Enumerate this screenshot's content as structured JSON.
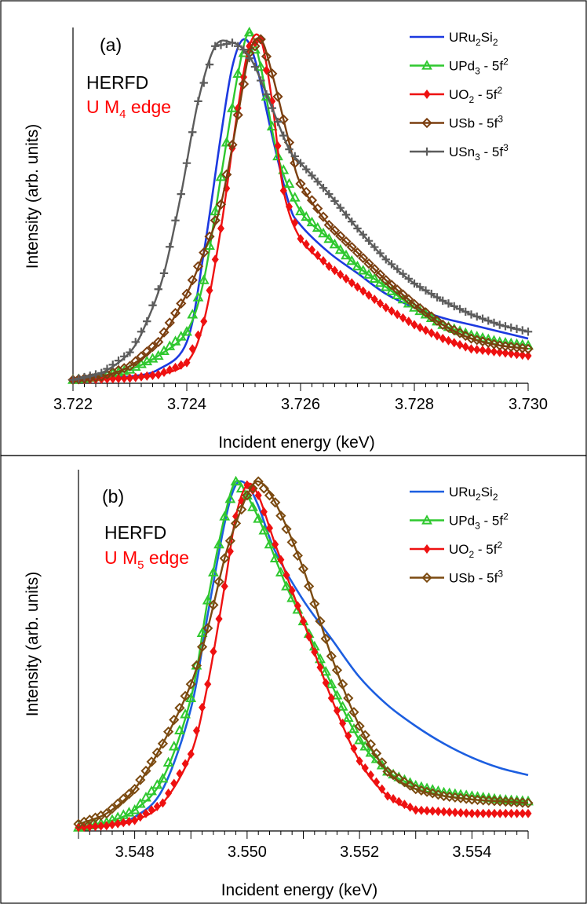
{
  "chart_data": [
    {
      "type": "line",
      "panel_label": "(a)",
      "annotations": [
        {
          "text": "HERFD",
          "color": "#000000"
        },
        {
          "text": "U M",
          "sub": "4",
          "suffix": " edge",
          "color": "#ff0000"
        }
      ],
      "xlabel": "Incident energy (keV)",
      "ylabel": "Intensity (arb. units)",
      "xlim": [
        3.722,
        3.73
      ],
      "ylim": [
        0,
        1.0
      ],
      "xticks": [
        "3.722",
        "3.724",
        "3.726",
        "3.728",
        "3.730"
      ],
      "xtick_values": [
        3.722,
        3.724,
        3.726,
        3.728,
        3.73
      ],
      "legend_position": "top-right",
      "grid": false,
      "series": [
        {
          "name": "URu2Si2",
          "base": "URu",
          "sub1": "2",
          "mid": "Si",
          "sub2": "2",
          "tail": "",
          "sup": "",
          "color": "#1c39e0",
          "marker": "none",
          "x": [
            3.722,
            3.7225,
            3.723,
            3.7235,
            3.724,
            3.7243,
            3.7246,
            3.7248,
            3.725,
            3.7252,
            3.7255,
            3.7258,
            3.726,
            3.7265,
            3.727,
            3.7275,
            3.728,
            3.7285,
            3.729,
            3.7295,
            3.73
          ],
          "y": [
            0.01,
            0.015,
            0.02,
            0.04,
            0.12,
            0.38,
            0.72,
            0.92,
            1.0,
            0.94,
            0.72,
            0.52,
            0.46,
            0.38,
            0.32,
            0.26,
            0.22,
            0.19,
            0.17,
            0.15,
            0.13
          ]
        },
        {
          "name": "UPd3 - 5f2",
          "base": "UPd",
          "sub1": "3",
          "mid": "",
          "sub2": "",
          "tail": " - 5f",
          "sup": "2",
          "color": "#2fc82f",
          "marker": "triangle",
          "x": [
            3.722,
            3.7225,
            3.723,
            3.7235,
            3.724,
            3.7243,
            3.7246,
            3.7249,
            3.7251,
            3.7253,
            3.7256,
            3.726,
            3.7265,
            3.727,
            3.7275,
            3.728,
            3.7285,
            3.729,
            3.7295,
            3.73
          ],
          "y": [
            0.01,
            0.02,
            0.04,
            0.08,
            0.15,
            0.3,
            0.6,
            0.9,
            1.02,
            0.92,
            0.66,
            0.5,
            0.42,
            0.34,
            0.28,
            0.22,
            0.17,
            0.14,
            0.12,
            0.11
          ]
        },
        {
          "name": "UO2 - 5f2",
          "base": "UO",
          "sub1": "2",
          "mid": "",
          "sub2": "",
          "tail": " - 5f",
          "sup": "2",
          "color": "#ee1111",
          "marker": "diamond-filled",
          "x": [
            3.722,
            3.7225,
            3.723,
            3.7235,
            3.724,
            3.7243,
            3.7246,
            3.7249,
            3.7251,
            3.7253,
            3.7255,
            3.7257,
            3.726,
            3.7265,
            3.727,
            3.7275,
            3.728,
            3.7285,
            3.729,
            3.7295,
            3.73
          ],
          "y": [
            0.01,
            0.012,
            0.015,
            0.025,
            0.06,
            0.18,
            0.45,
            0.8,
            0.98,
            1.0,
            0.82,
            0.56,
            0.42,
            0.34,
            0.28,
            0.22,
            0.17,
            0.13,
            0.1,
            0.09,
            0.08
          ]
        },
        {
          "name": "USb - 5f3",
          "base": "USb",
          "sub1": "",
          "mid": "",
          "sub2": "",
          "tail": " - 5f",
          "sup": "3",
          "color": "#7b3f10",
          "marker": "diamond-open",
          "x": [
            3.722,
            3.7225,
            3.723,
            3.7235,
            3.724,
            3.7243,
            3.7246,
            3.7249,
            3.7251,
            3.7253,
            3.7255,
            3.7258,
            3.726,
            3.7265,
            3.727,
            3.7275,
            3.728,
            3.7285,
            3.729,
            3.7295,
            3.73
          ],
          "y": [
            0.01,
            0.02,
            0.05,
            0.12,
            0.26,
            0.38,
            0.52,
            0.78,
            0.96,
            1.0,
            0.9,
            0.7,
            0.58,
            0.46,
            0.38,
            0.3,
            0.23,
            0.17,
            0.13,
            0.11,
            0.1
          ]
        },
        {
          "name": "USn3 - 5f3",
          "base": "USn",
          "sub1": "3",
          "mid": "",
          "sub2": "",
          "tail": " - 5f",
          "sup": "3",
          "color": "#5c5c5c",
          "marker": "plus",
          "x": [
            3.722,
            3.7225,
            3.723,
            3.7233,
            3.7236,
            3.7239,
            3.7242,
            3.7245,
            3.7248,
            3.725,
            3.7252,
            3.7255,
            3.7258,
            3.726,
            3.7265,
            3.727,
            3.7275,
            3.728,
            3.7285,
            3.729,
            3.7295,
            3.73
          ],
          "y": [
            0.01,
            0.03,
            0.09,
            0.18,
            0.32,
            0.55,
            0.82,
            0.98,
            0.99,
            0.97,
            0.92,
            0.8,
            0.68,
            0.64,
            0.55,
            0.45,
            0.36,
            0.29,
            0.24,
            0.2,
            0.17,
            0.15
          ]
        }
      ]
    },
    {
      "type": "line",
      "panel_label": "(b)",
      "annotations": [
        {
          "text": "HERFD",
          "color": "#000000"
        },
        {
          "text": "U M",
          "sub": "5",
          "suffix": " edge",
          "color": "#ff0000"
        }
      ],
      "xlabel": "Incident energy (keV)",
      "ylabel": "Intensity (arb. units)",
      "xlim": [
        3.547,
        3.555
      ],
      "ylim": [
        0,
        1.0
      ],
      "xticks": [
        "3.548",
        "3.550",
        "3.552",
        "3.554"
      ],
      "xtick_values": [
        3.548,
        3.55,
        3.552,
        3.554
      ],
      "legend_position": "top-right",
      "grid": false,
      "series": [
        {
          "name": "URu2Si2",
          "base": "URu",
          "sub1": "2",
          "mid": "Si",
          "sub2": "2",
          "tail": "",
          "sup": "",
          "color": "#1c5ee0",
          "marker": "none",
          "x": [
            3.547,
            3.5475,
            3.548,
            3.5485,
            3.549,
            3.5493,
            3.5496,
            3.5498,
            3.55,
            3.5502,
            3.5505,
            3.551,
            3.5515,
            3.552,
            3.5525,
            3.553,
            3.5535,
            3.554,
            3.5545,
            3.555
          ],
          "y": [
            0.01,
            0.015,
            0.04,
            0.12,
            0.35,
            0.62,
            0.88,
            0.99,
            0.99,
            0.93,
            0.8,
            0.66,
            0.55,
            0.44,
            0.36,
            0.3,
            0.25,
            0.21,
            0.18,
            0.16
          ]
        },
        {
          "name": "UPd3 - 5f2",
          "base": "UPd",
          "sub1": "3",
          "mid": "",
          "sub2": "",
          "tail": " - 5f",
          "sup": "2",
          "color": "#2fc82f",
          "marker": "triangle",
          "x": [
            3.547,
            3.5475,
            3.548,
            3.5485,
            3.549,
            3.5493,
            3.5496,
            3.5498,
            3.55,
            3.5503,
            3.5507,
            3.551,
            3.5515,
            3.552,
            3.5525,
            3.553,
            3.5535,
            3.554,
            3.5545,
            3.555
          ],
          "y": [
            0.01,
            0.025,
            0.06,
            0.15,
            0.38,
            0.66,
            0.9,
            1.0,
            0.96,
            0.86,
            0.7,
            0.6,
            0.42,
            0.26,
            0.17,
            0.13,
            0.11,
            0.1,
            0.09,
            0.085
          ]
        },
        {
          "name": "UO2 - 5f2",
          "base": "UO",
          "sub1": "2",
          "mid": "",
          "sub2": "",
          "tail": " - 5f",
          "sup": "2",
          "color": "#ee1111",
          "marker": "diamond-filled",
          "x": [
            3.547,
            3.5475,
            3.548,
            3.5485,
            3.549,
            3.5493,
            3.5496,
            3.5498,
            3.55,
            3.5502,
            3.5505,
            3.551,
            3.5515,
            3.552,
            3.5525,
            3.553,
            3.5535,
            3.554,
            3.5545,
            3.555
          ],
          "y": [
            0.01,
            0.015,
            0.03,
            0.08,
            0.22,
            0.42,
            0.7,
            0.9,
            0.99,
            0.96,
            0.82,
            0.6,
            0.38,
            0.2,
            0.1,
            0.06,
            0.055,
            0.05,
            0.05,
            0.05
          ]
        },
        {
          "name": "USb - 5f3",
          "base": "USb",
          "sub1": "",
          "mid": "",
          "sub2": "",
          "tail": " - 5f",
          "sup": "3",
          "color": "#7b4a10",
          "marker": "diamond-open",
          "x": [
            3.547,
            3.5475,
            3.548,
            3.5485,
            3.549,
            3.5493,
            3.5496,
            3.5498,
            3.55,
            3.5502,
            3.5505,
            3.551,
            3.5515,
            3.552,
            3.5525,
            3.553,
            3.5535,
            3.554,
            3.5545,
            3.555
          ],
          "y": [
            0.02,
            0.05,
            0.12,
            0.25,
            0.42,
            0.58,
            0.78,
            0.88,
            0.96,
            1.0,
            0.94,
            0.75,
            0.5,
            0.3,
            0.17,
            0.12,
            0.1,
            0.09,
            0.085,
            0.08
          ]
        }
      ]
    }
  ]
}
